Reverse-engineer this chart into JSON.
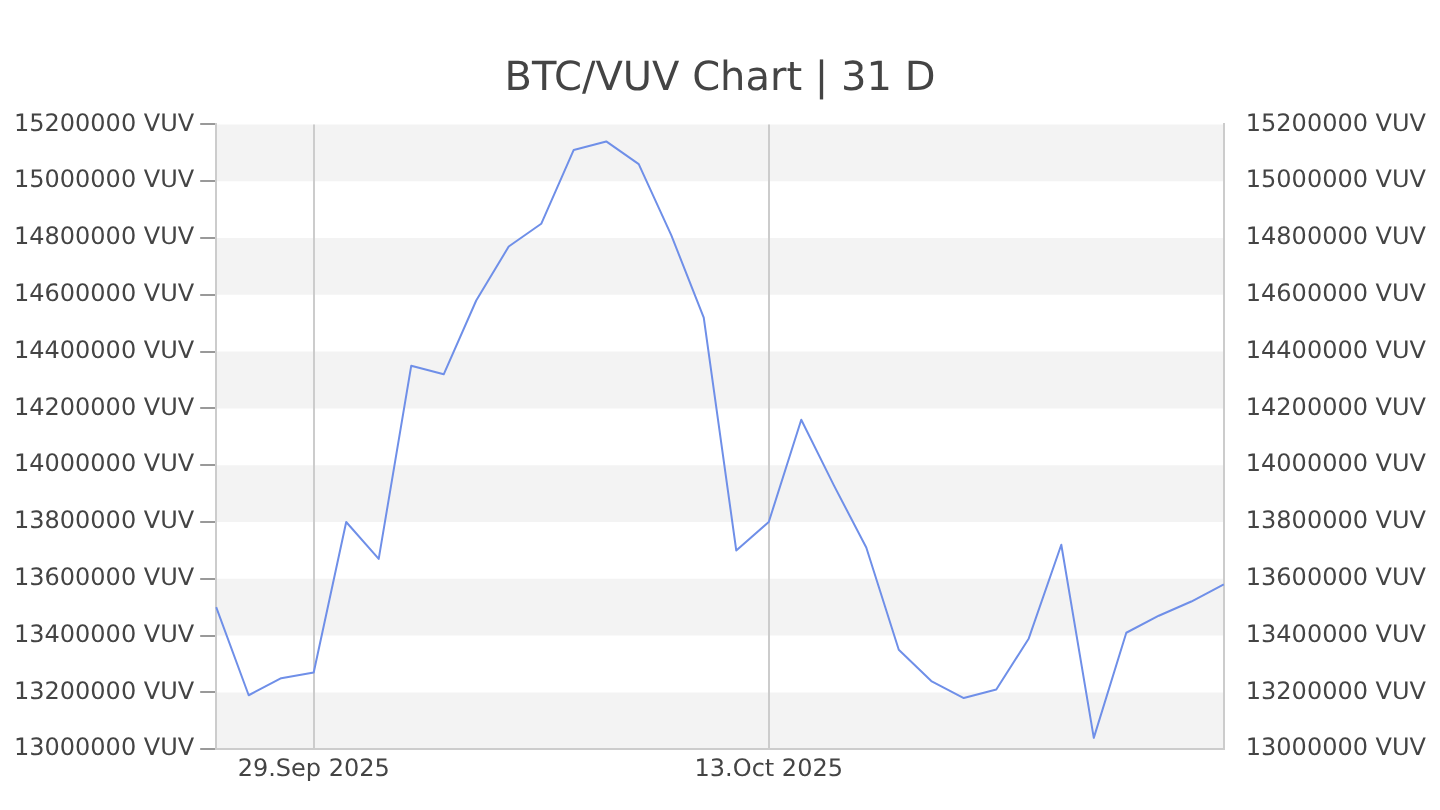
{
  "chart_data": {
    "type": "line",
    "title": "BTC/VUV Chart | 31 D",
    "categories": [
      null,
      null,
      null,
      "29.Sep 2025",
      null,
      null,
      null,
      null,
      null,
      null,
      null,
      null,
      null,
      null,
      null,
      null,
      null,
      "13.Oct 2025",
      null,
      null,
      null,
      null,
      null,
      null,
      null,
      null,
      null,
      null,
      null,
      null,
      null,
      null
    ],
    "series": [
      {
        "color": "#6f8fe8",
        "values": [
          13500000,
          13190000,
          13250000,
          13270000,
          13800000,
          13670000,
          14350000,
          14320000,
          14580000,
          14770000,
          14850000,
          15110000,
          15140000,
          15060000,
          14810000,
          14520000,
          13700000,
          13800000,
          14160000,
          13930000,
          13710000,
          13350000,
          13240000,
          13180000,
          13210000,
          13390000,
          13720000,
          13040000,
          13410000,
          13470000,
          13520000,
          13580000
        ]
      }
    ],
    "ylim": [
      13000000,
      15200000
    ],
    "yticks": [
      {
        "value": 13000000,
        "label": "13000000 VUV"
      },
      {
        "value": 13200000,
        "label": "13200000 VUV"
      },
      {
        "value": 13400000,
        "label": "13400000 VUV"
      },
      {
        "value": 13600000,
        "label": "13600000 VUV"
      },
      {
        "value": 13800000,
        "label": "13800000 VUV"
      },
      {
        "value": 14000000,
        "label": "14000000 VUV"
      },
      {
        "value": 14200000,
        "label": "14200000 VUV"
      },
      {
        "value": 14400000,
        "label": "14400000 VUV"
      },
      {
        "value": 14600000,
        "label": "14600000 VUV"
      },
      {
        "value": 14800000,
        "label": "14800000 VUV"
      },
      {
        "value": 15000000,
        "label": "15000000 VUV"
      },
      {
        "value": 15200000,
        "label": "15200000 VUV"
      }
    ],
    "y2lim": [
      13000000,
      15200000
    ],
    "y2ticks": [
      {
        "value": 13000000,
        "label": "13000000 VUV"
      },
      {
        "value": 13200000,
        "label": "13200000 VUV"
      },
      {
        "value": 13400000,
        "label": "13400000 VUV"
      },
      {
        "value": 13600000,
        "label": "13600000 VUV"
      },
      {
        "value": 13800000,
        "label": "13800000 VUV"
      },
      {
        "value": 14000000,
        "label": "14000000 VUV"
      },
      {
        "value": 14200000,
        "label": "14200000 VUV"
      },
      {
        "value": 14400000,
        "label": "14400000 VUV"
      },
      {
        "value": 14600000,
        "label": "14600000 VUV"
      },
      {
        "value": 14800000,
        "label": "14800000 VUV"
      },
      {
        "value": 15000000,
        "label": "15000000 VUV"
      },
      {
        "value": 15200000,
        "label": "15200000 VUV"
      }
    ],
    "grid": true,
    "marker": "none",
    "line_style": "solid"
  }
}
